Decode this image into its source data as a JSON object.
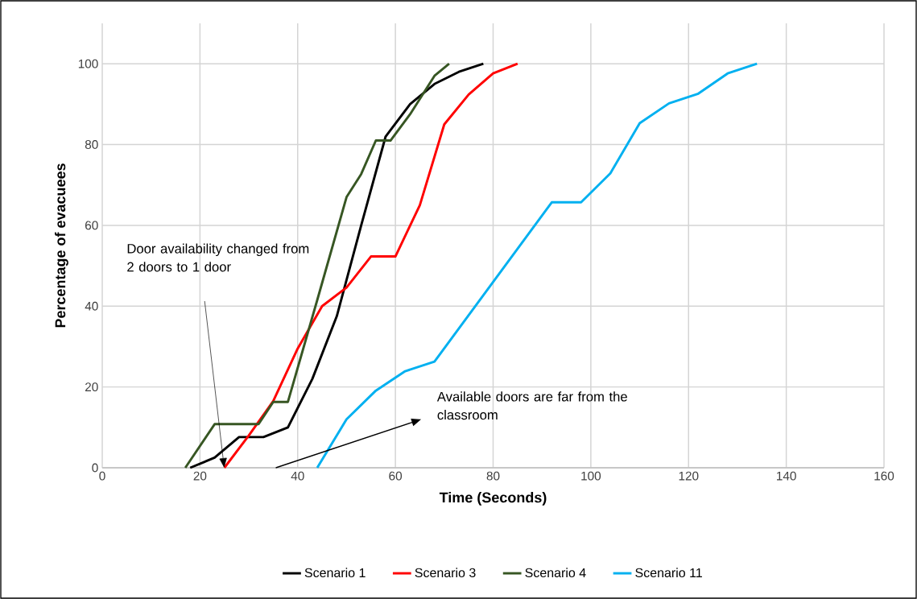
{
  "chart_data": {
    "type": "line",
    "xlabel": "Time (Seconds)",
    "ylabel": "Percentage of evacuees",
    "xlim": [
      0,
      160
    ],
    "xticks": [
      0,
      20,
      40,
      60,
      80,
      100,
      120,
      140,
      160
    ],
    "ylim": [
      0,
      110
    ],
    "yticks": [
      0,
      20,
      40,
      60,
      80,
      100
    ],
    "grid": true,
    "legend": "bottom",
    "marker": "none",
    "line_style": "solid",
    "series": [
      {
        "name": "Scenario 1",
        "color": "#000000",
        "x": [
          18,
          23,
          28,
          33,
          38,
          43,
          48,
          53,
          58,
          63,
          68,
          73,
          78
        ],
        "values": [
          0,
          2.5,
          7.6,
          7.6,
          10,
          22,
          37.5,
          60,
          82,
          90,
          95,
          98,
          100
        ]
      },
      {
        "name": "Scenario 3",
        "color": "#ff0000",
        "x": [
          25,
          30,
          35,
          40,
          45,
          50,
          55,
          60,
          65,
          70,
          75,
          80,
          85
        ],
        "values": [
          0,
          8,
          16.5,
          29.5,
          40,
          44.6,
          52.3,
          52.3,
          65,
          85,
          92.4,
          97.6,
          100
        ]
      },
      {
        "name": "Scenario 4",
        "color": "#375623",
        "x": [
          17,
          23,
          32,
          35,
          38,
          44,
          50,
          53,
          56,
          59,
          63,
          68,
          71
        ],
        "values": [
          0,
          10.8,
          10.8,
          16.3,
          16.3,
          41.5,
          67,
          72.7,
          81,
          81,
          87.5,
          97,
          100
        ]
      },
      {
        "name": "Scenario 11",
        "color": "#00b0f0",
        "x": [
          44,
          50,
          56,
          62,
          68,
          92,
          98,
          104,
          110,
          116,
          122,
          128,
          134
        ],
        "values": [
          0,
          12,
          19.1,
          23.9,
          26.3,
          65.7,
          65.7,
          72.9,
          85.3,
          90.2,
          92.6,
          97.6,
          100
        ]
      }
    ],
    "annotations": [
      "Door availability changed from 2 doors to 1 door",
      "Available doors are far from the classroom"
    ]
  }
}
